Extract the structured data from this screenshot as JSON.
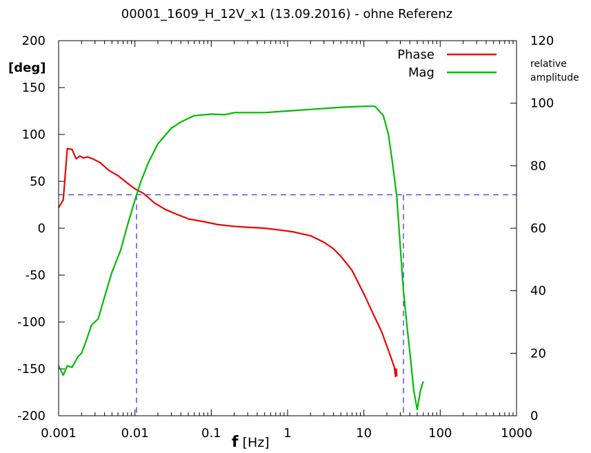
{
  "chart_data": {
    "type": "line",
    "title": "00001_1609_H_12V_x1 (13.09.2016) - ohne Referenz",
    "x_axis": {
      "label_bold": "f",
      "label_rest": " [Hz]",
      "scale": "log",
      "range": [
        0.001,
        1000
      ],
      "ticks": [
        0.001,
        0.01,
        0.1,
        1,
        10,
        100,
        1000
      ],
      "tick_labels": [
        "0.001",
        "0.01",
        "0.1",
        "1",
        "10",
        "100",
        "1000"
      ]
    },
    "y_axis_left": {
      "label": "[deg]",
      "range": [
        -200,
        200
      ],
      "ticks": [
        200,
        150,
        100,
        50,
        0,
        -50,
        -100,
        -150,
        -200
      ],
      "tick_labels": [
        "200",
        "150",
        "100",
        "50",
        "0",
        "-50",
        "-100",
        "-150",
        "-200"
      ]
    },
    "y_axis_right": {
      "label_line1": "relative",
      "label_line2": "amplitude",
      "range": [
        0,
        120
      ],
      "ticks": [
        120,
        100,
        80,
        60,
        40,
        20,
        0
      ],
      "tick_labels": [
        "120",
        "100",
        "80",
        "60",
        "40",
        "20",
        "0"
      ]
    },
    "legend_position": "top-right",
    "series": [
      {
        "name": "Phase",
        "axis": "left",
        "color": "#ee0000",
        "points": [
          [
            0.001,
            22
          ],
          [
            0.00115,
            30
          ],
          [
            0.0013,
            85
          ],
          [
            0.0015,
            84
          ],
          [
            0.0017,
            74
          ],
          [
            0.0019,
            77
          ],
          [
            0.0021,
            75
          ],
          [
            0.0024,
            76
          ],
          [
            0.0028,
            74
          ],
          [
            0.0035,
            70
          ],
          [
            0.0045,
            62
          ],
          [
            0.006,
            56
          ],
          [
            0.008,
            48
          ],
          [
            0.01,
            42
          ],
          [
            0.013,
            37
          ],
          [
            0.018,
            27
          ],
          [
            0.025,
            20
          ],
          [
            0.035,
            15
          ],
          [
            0.05,
            10
          ],
          [
            0.08,
            7
          ],
          [
            0.12,
            4
          ],
          [
            0.2,
            2
          ],
          [
            0.3,
            1
          ],
          [
            0.5,
            0
          ],
          [
            0.8,
            -2
          ],
          [
            1.2,
            -4
          ],
          [
            2,
            -8
          ],
          [
            3,
            -15
          ],
          [
            4,
            -22
          ],
          [
            5,
            -30
          ],
          [
            7,
            -45
          ],
          [
            10,
            -70
          ],
          [
            13,
            -90
          ],
          [
            17,
            -110
          ],
          [
            22,
            -135
          ],
          [
            25,
            -148
          ],
          [
            26,
            -158
          ],
          [
            26.5,
            -150
          ],
          [
            27,
            -158
          ]
        ]
      },
      {
        "name": "Mag",
        "axis": "right",
        "color": "#00bb00",
        "points": [
          [
            0.001,
            16
          ],
          [
            0.00115,
            13
          ],
          [
            0.0013,
            16
          ],
          [
            0.0015,
            15.5
          ],
          [
            0.0018,
            19
          ],
          [
            0.002,
            20
          ],
          [
            0.0023,
            24
          ],
          [
            0.0027,
            29
          ],
          [
            0.0033,
            31
          ],
          [
            0.004,
            38
          ],
          [
            0.005,
            46
          ],
          [
            0.0065,
            53
          ],
          [
            0.008,
            61
          ],
          [
            0.01,
            69
          ],
          [
            0.012,
            75
          ],
          [
            0.015,
            81
          ],
          [
            0.02,
            87
          ],
          [
            0.03,
            92
          ],
          [
            0.04,
            94
          ],
          [
            0.06,
            96
          ],
          [
            0.1,
            96.5
          ],
          [
            0.15,
            96.3
          ],
          [
            0.2,
            97
          ],
          [
            0.5,
            97
          ],
          [
            1,
            97.5
          ],
          [
            2,
            98
          ],
          [
            5,
            98.7
          ],
          [
            10,
            99
          ],
          [
            14,
            99
          ],
          [
            18,
            96
          ],
          [
            21,
            90
          ],
          [
            24,
            80
          ],
          [
            27,
            70
          ],
          [
            30,
            54
          ],
          [
            33,
            40
          ],
          [
            37,
            28
          ],
          [
            41,
            18
          ],
          [
            45,
            8
          ],
          [
            50,
            2
          ],
          [
            55,
            8
          ],
          [
            60,
            11
          ]
        ]
      }
    ],
    "reference_lines": {
      "style": "dashed",
      "color": "#3333ff",
      "horizontal_y_right": 70.7,
      "vertical_x": [
        0.0105,
        33
      ]
    }
  }
}
